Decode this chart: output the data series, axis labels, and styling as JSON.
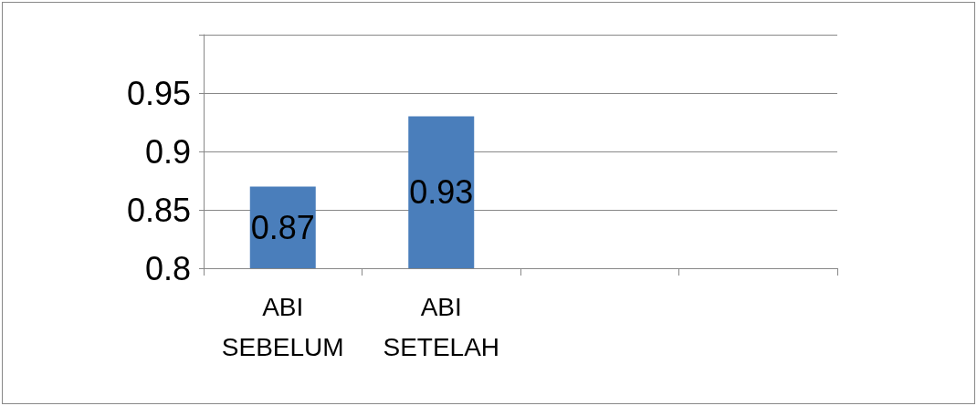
{
  "chart_data": {
    "type": "bar",
    "categories": [
      "ABI SEBELUM",
      "ABI SETELAH",
      null,
      null
    ],
    "values": [
      0.87,
      0.93,
      null,
      null
    ],
    "color": "#4a7ebb",
    "ylim": [
      0.8,
      1.0
    ],
    "yticks": [
      0.8,
      0.85,
      0.9,
      0.95,
      {
        "value": 1.0,
        "label": null
      }
    ],
    "grid": "y",
    "data_labels": true
  }
}
